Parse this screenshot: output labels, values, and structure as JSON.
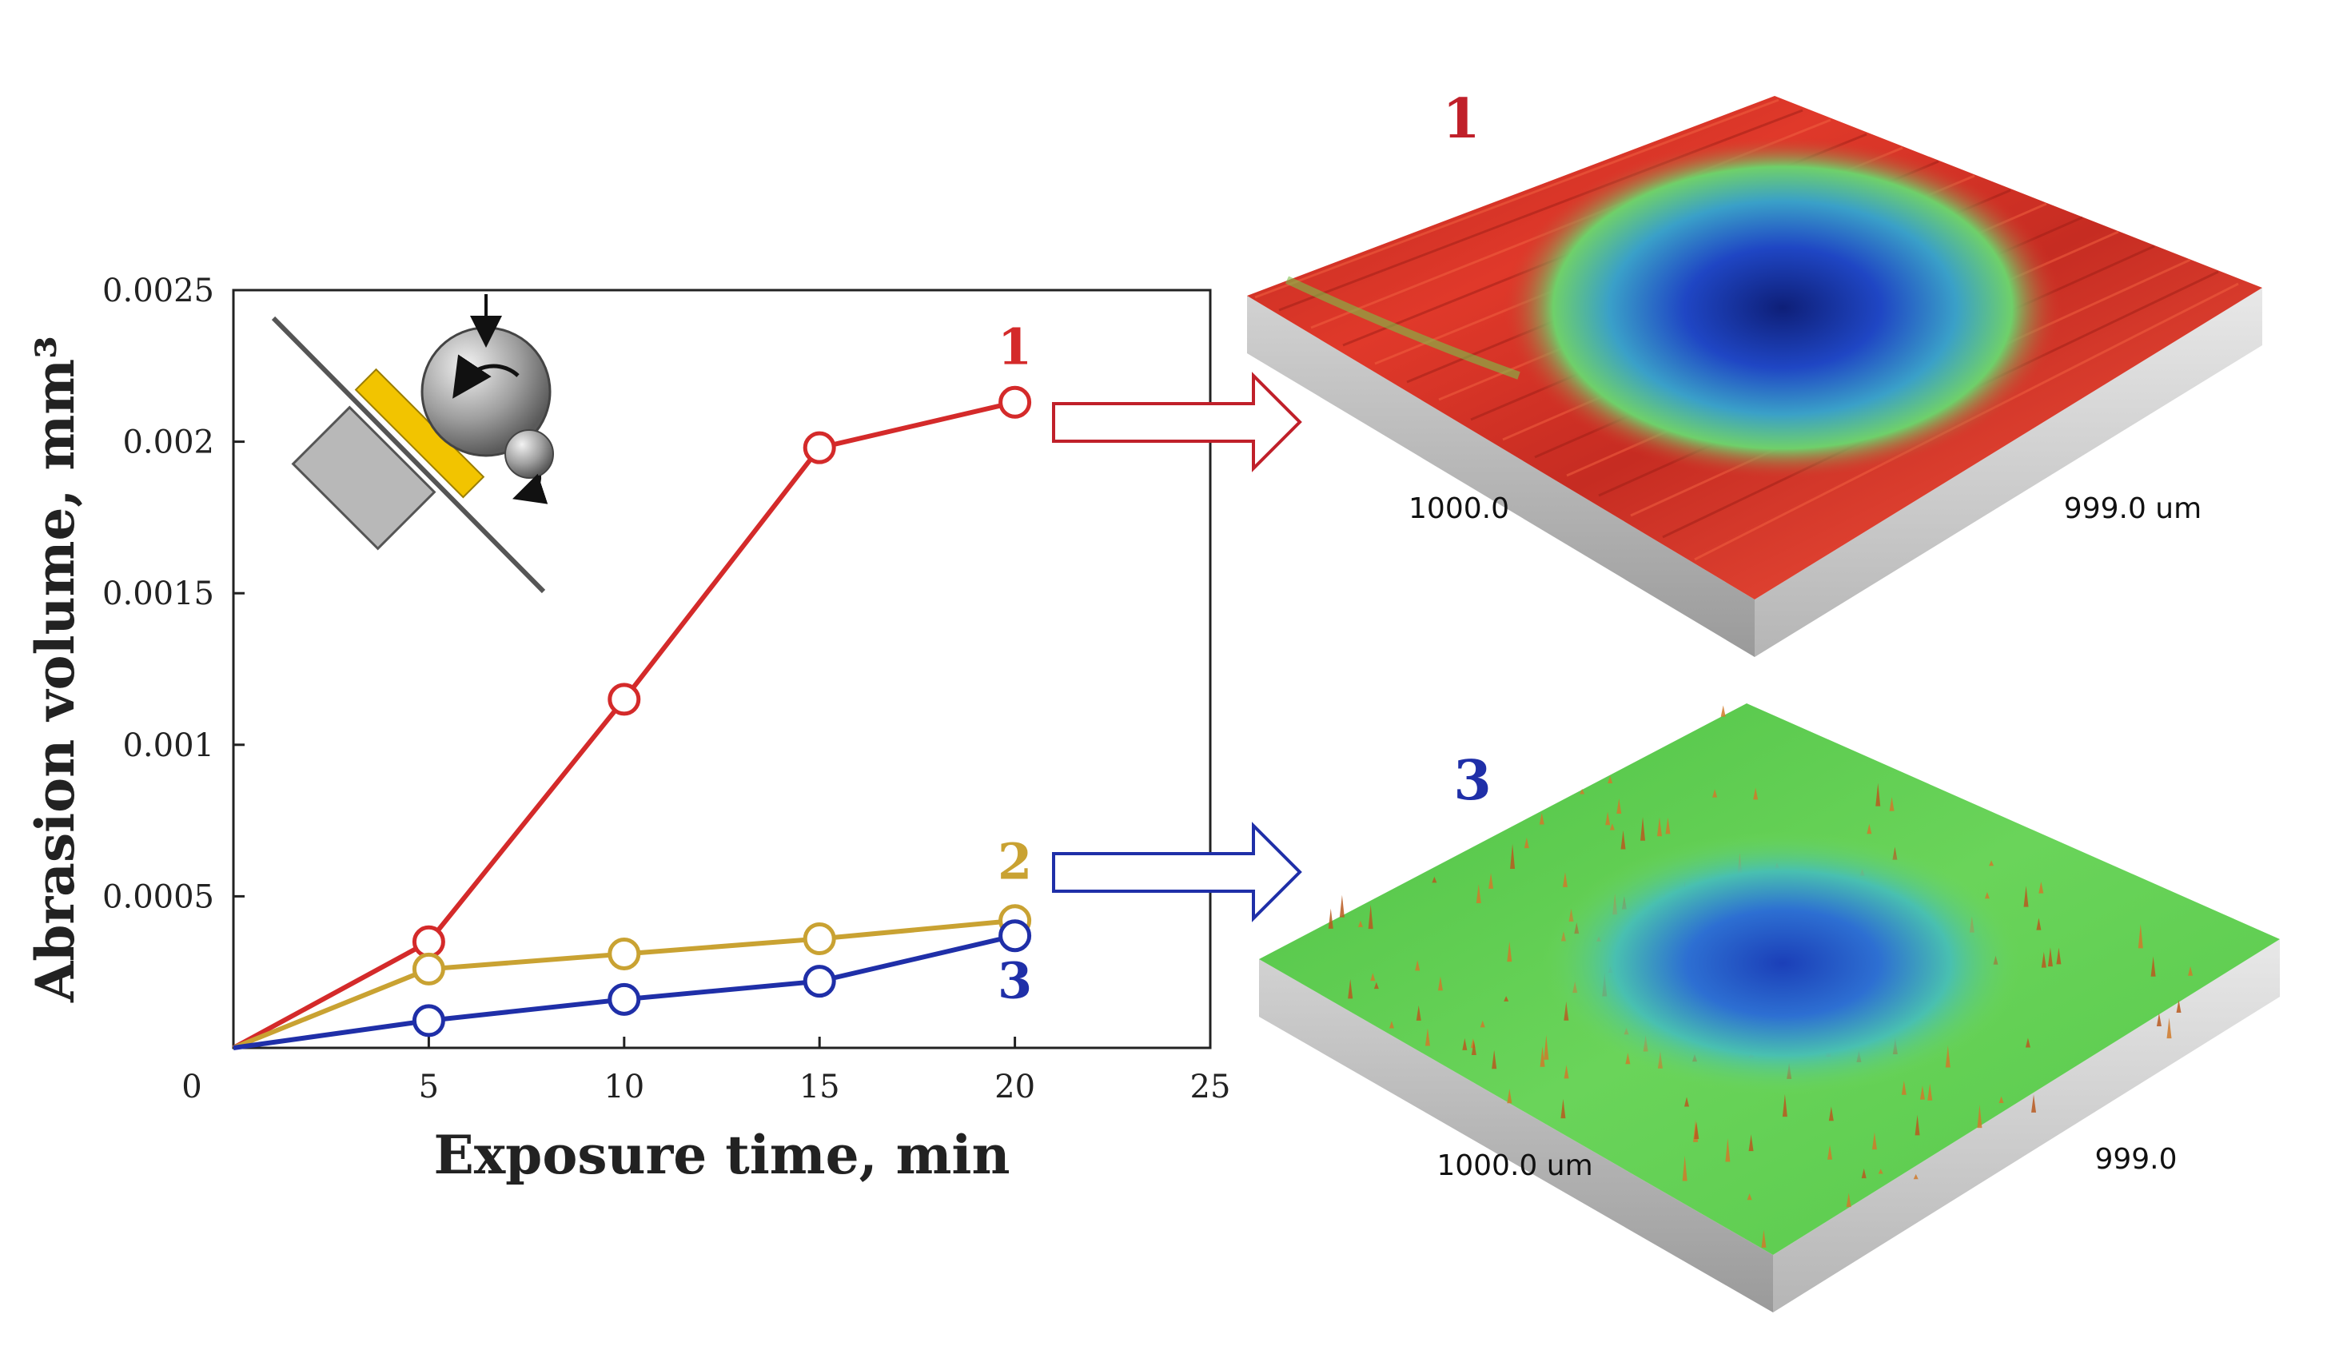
{
  "chart_data": {
    "type": "line",
    "xlabel": "Exposure time, min",
    "ylabel": "Abrasion volume, mm³",
    "xlim": [
      0,
      25
    ],
    "ylim": [
      0,
      0.0025
    ],
    "x_ticks": [
      "0",
      "5",
      "10",
      "15",
      "20",
      "25"
    ],
    "y_ticks": [
      "0.0005",
      "0.001",
      "0.0015",
      "0.002",
      "0.0025"
    ],
    "grid": false,
    "series": [
      {
        "name": "1",
        "color": "#d42a2a",
        "x": [
          0,
          5,
          10,
          15,
          20
        ],
        "y": [
          0,
          0.00035,
          0.00115,
          0.00198,
          0.00213
        ]
      },
      {
        "name": "2",
        "color": "#c9a232",
        "x": [
          0,
          5,
          10,
          15,
          20
        ],
        "y": [
          0,
          0.00026,
          0.00031,
          0.00036,
          0.00042
        ]
      },
      {
        "name": "3",
        "color": "#1f2fa8",
        "x": [
          0,
          5,
          10,
          15,
          20
        ],
        "y": [
          0,
          9e-05,
          0.00016,
          0.00022,
          0.00037
        ]
      }
    ]
  },
  "maps": [
    {
      "label": "1",
      "color": "#c0202a",
      "dim_left": "1000.0",
      "dim_right": "999.0 um"
    },
    {
      "label": "3",
      "color": "#1f2fa8",
      "dim_left": "1000.0 um",
      "dim_right": "999.0"
    }
  ],
  "icons": [
    "tribometer-schematic-icon",
    "arrow-right-icon"
  ]
}
